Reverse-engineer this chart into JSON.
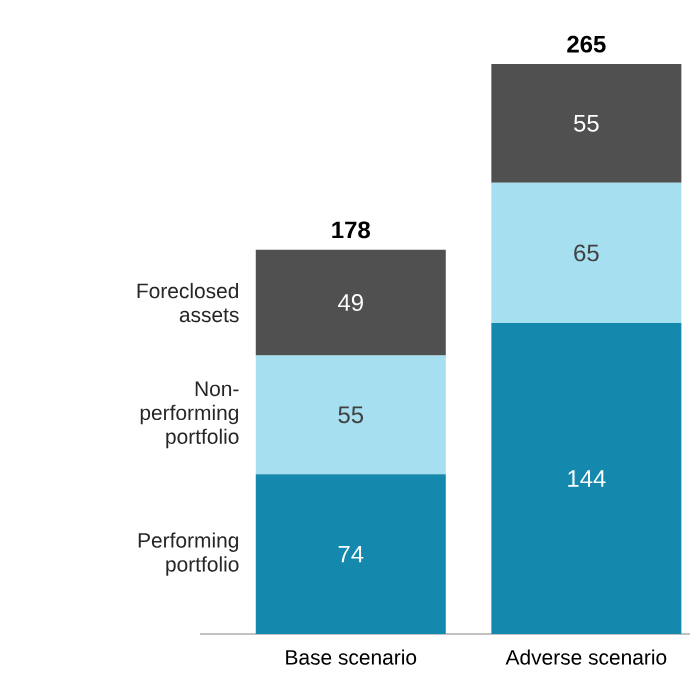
{
  "chart_data": {
    "type": "bar",
    "stacked": true,
    "categories": [
      "Base scenario",
      "Adverse scenario"
    ],
    "series": [
      {
        "name": "Performing portfolio",
        "color": "#1589ad",
        "values": [
          74,
          144
        ]
      },
      {
        "name": "Non-performing portfolio",
        "color": "#a6dff0",
        "values": [
          55,
          65
        ]
      },
      {
        "name": "Foreclosed assets",
        "color": "#505050",
        "values": [
          49,
          55
        ]
      }
    ],
    "data_labels": true,
    "totals": [
      "178",
      "265"
    ]
  }
}
